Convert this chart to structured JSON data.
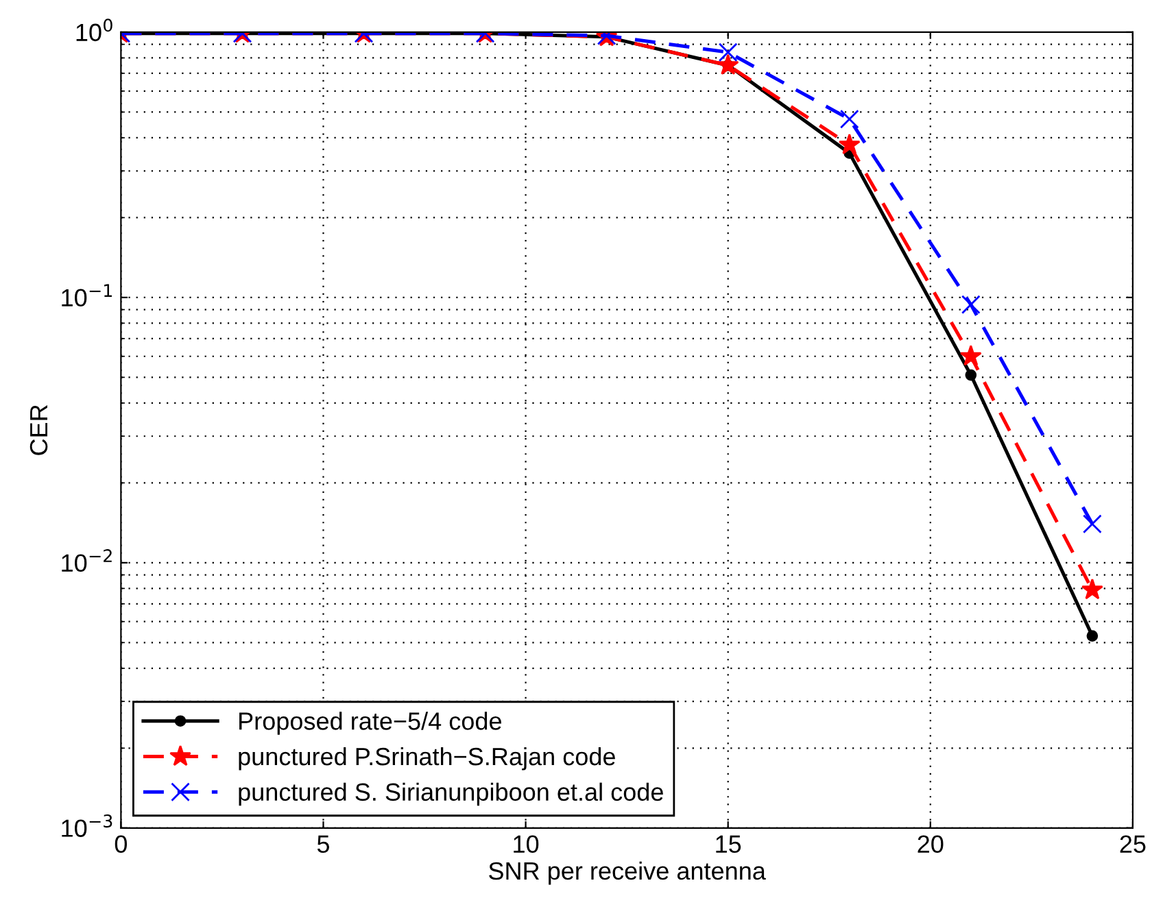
{
  "chart_data": {
    "type": "line",
    "xlabel": "SNR per receive antenna",
    "ylabel": "CER",
    "x": [
      0,
      3,
      6,
      9,
      12,
      15,
      18,
      21,
      24
    ],
    "series": [
      {
        "name": "Proposed rate−5/4 code",
        "color": "#000000",
        "values": [
          0.99,
          0.99,
          0.99,
          0.99,
          0.96,
          0.75,
          0.35,
          0.051,
          0.0053
        ],
        "marker": "circle",
        "line_style": "solid"
      },
      {
        "name": "punctured P.Srinath−S.Rajan code",
        "color": "#ff0000",
        "values": [
          0.99,
          0.99,
          0.99,
          0.99,
          0.96,
          0.75,
          0.376,
          0.06,
          0.0079
        ],
        "marker": "star",
        "line_style": "dashed"
      },
      {
        "name": "punctured S. Sirianunpiboon et.al code",
        "color": "#0000ff",
        "values": [
          0.99,
          0.99,
          0.99,
          0.99,
          0.97,
          0.84,
          0.47,
          0.094,
          0.014
        ],
        "marker": "cross",
        "line_style": "dashed"
      }
    ],
    "log": "y",
    "xlim": [
      0,
      25
    ],
    "ylim": [
      0.001,
      1
    ],
    "xticks": [
      0,
      5,
      10,
      15,
      20,
      25
    ],
    "yticks": [
      {
        "value": 0.001,
        "label": "10$^{−3}$"
      },
      {
        "value": 0.01,
        "label": "10$^{−2}$"
      },
      {
        "value": 0.1,
        "label": "10$^{−1}$"
      },
      {
        "value": 1,
        "label": "10$^{0}$"
      }
    ],
    "grid": true,
    "legend": "bottom left"
  }
}
